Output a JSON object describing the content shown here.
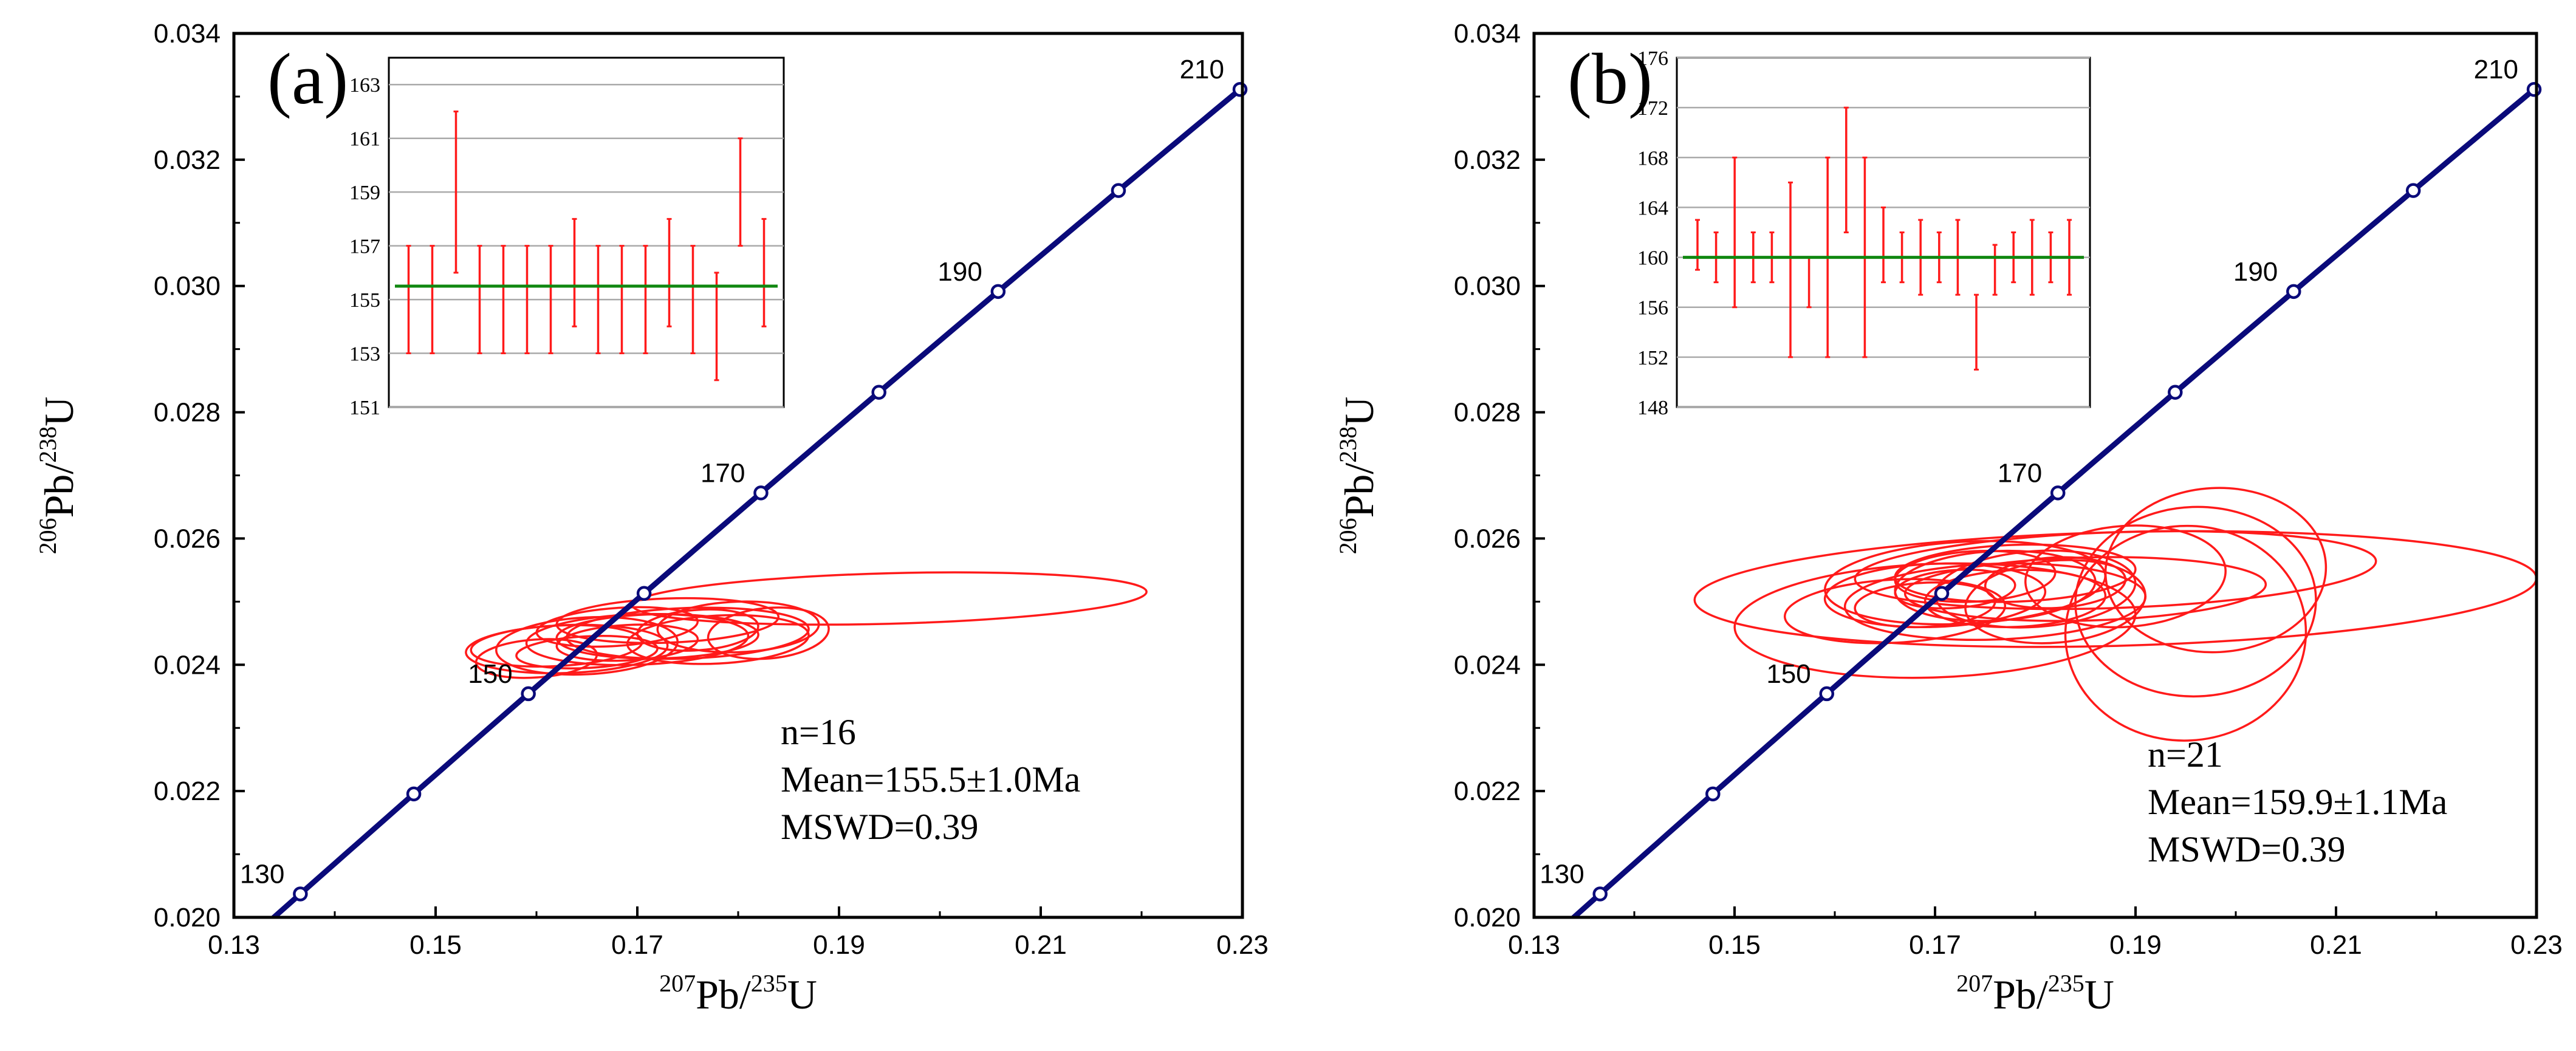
{
  "chart_data": [
    {
      "type": "scatter",
      "panel_label": "(a)",
      "xlabel": {
        "sup": "207",
        "main": "Pb/",
        "sup2": "235",
        "main2": "U"
      },
      "ylabel": {
        "sup": "206",
        "main": "Pb/",
        "sup2": "238",
        "main2": "U"
      },
      "xlim": [
        0.13,
        0.23
      ],
      "ylim": [
        0.02,
        0.034
      ],
      "xticks": [
        "0.13",
        "0.15",
        "0.17",
        "0.19",
        "0.21",
        "0.23"
      ],
      "yticks": [
        "0.020",
        "0.022",
        "0.024",
        "0.026",
        "0.028",
        "0.030",
        "0.032",
        "0.034"
      ],
      "concordia": {
        "ages": [
          130,
          140,
          150,
          160,
          170,
          180,
          190,
          200,
          210
        ],
        "labels": [
          "130",
          "150",
          "170",
          "190",
          "210"
        ]
      },
      "ellipses": [
        {
          "x": 0.163,
          "y": 0.02425,
          "rx": 0.01,
          "ry": 0.00038,
          "rot": 2
        },
        {
          "x": 0.165,
          "y": 0.0243,
          "rx": 0.009,
          "ry": 0.00045,
          "rot": 3
        },
        {
          "x": 0.17,
          "y": 0.0244,
          "rx": 0.011,
          "ry": 0.0004,
          "rot": 2
        },
        {
          "x": 0.172,
          "y": 0.02445,
          "rx": 0.01,
          "ry": 0.00035,
          "rot": 1
        },
        {
          "x": 0.175,
          "y": 0.0245,
          "rx": 0.012,
          "ry": 0.0004,
          "rot": 2
        },
        {
          "x": 0.168,
          "y": 0.0246,
          "rx": 0.008,
          "ry": 0.0003,
          "rot": 4
        },
        {
          "x": 0.178,
          "y": 0.0244,
          "rx": 0.009,
          "ry": 0.00038,
          "rot": 3
        },
        {
          "x": 0.18,
          "y": 0.0246,
          "rx": 0.008,
          "ry": 0.0004,
          "rot": 2
        },
        {
          "x": 0.16,
          "y": 0.0241,
          "rx": 0.006,
          "ry": 0.0003,
          "rot": 4
        },
        {
          "x": 0.165,
          "y": 0.0242,
          "rx": 0.007,
          "ry": 0.00025,
          "rot": 3
        },
        {
          "x": 0.173,
          "y": 0.0247,
          "rx": 0.011,
          "ry": 0.00035,
          "rot": 2
        },
        {
          "x": 0.183,
          "y": 0.0245,
          "rx": 0.006,
          "ry": 0.0004,
          "rot": 5
        },
        {
          "x": 0.169,
          "y": 0.02435,
          "rx": 0.007,
          "ry": 0.00028,
          "rot": 3
        },
        {
          "x": 0.176,
          "y": 0.02455,
          "rx": 0.006,
          "ry": 0.00032,
          "rot": 4
        },
        {
          "x": 0.162,
          "y": 0.0243,
          "rx": 0.0085,
          "ry": 0.00032,
          "rot": 3
        },
        {
          "x": 0.195,
          "y": 0.02505,
          "rx": 0.0255,
          "ry": 0.0004,
          "rot": 1.5
        }
      ],
      "stats": {
        "n": "n=16",
        "mean": "Mean=155.5±1.0Ma",
        "mswd": "MSWD=0.39"
      },
      "inset": {
        "type": "bar",
        "ylim": [
          151,
          164
        ],
        "yticks": [
          "151",
          "153",
          "155",
          "157",
          "159",
          "161",
          "163"
        ],
        "mean": 155.5,
        "errors": [
          {
            "lo": 153,
            "hi": 157
          },
          {
            "lo": 153,
            "hi": 157
          },
          {
            "lo": 156,
            "hi": 162
          },
          {
            "lo": 153,
            "hi": 157
          },
          {
            "lo": 153,
            "hi": 157
          },
          {
            "lo": 153,
            "hi": 157
          },
          {
            "lo": 153,
            "hi": 157
          },
          {
            "lo": 154,
            "hi": 158
          },
          {
            "lo": 153,
            "hi": 157
          },
          {
            "lo": 153,
            "hi": 157
          },
          {
            "lo": 153,
            "hi": 157
          },
          {
            "lo": 154,
            "hi": 158
          },
          {
            "lo": 153,
            "hi": 157
          },
          {
            "lo": 152,
            "hi": 156
          },
          {
            "lo": 157,
            "hi": 161
          },
          {
            "lo": 154,
            "hi": 158
          }
        ]
      }
    },
    {
      "type": "scatter",
      "panel_label": "(b)",
      "xlabel": {
        "sup": "207",
        "main": "Pb/",
        "sup2": "235",
        "main2": "U"
      },
      "ylabel": {
        "sup": "206",
        "main": "Pb/",
        "sup2": "238",
        "main2": "U"
      },
      "xlim": [
        0.13,
        0.23
      ],
      "ylim": [
        0.02,
        0.034
      ],
      "xticks": [
        "0.13",
        "0.15",
        "0.17",
        "0.19",
        "0.21",
        "0.23"
      ],
      "yticks": [
        "0.020",
        "0.022",
        "0.024",
        "0.026",
        "0.028",
        "0.030",
        "0.032",
        "0.034"
      ],
      "concordia": {
        "ages": [
          130,
          140,
          150,
          160,
          170,
          180,
          190,
          200,
          210
        ],
        "labels": [
          "130",
          "150",
          "170",
          "190",
          "210"
        ]
      },
      "ellipses": [
        {
          "x": 0.173,
          "y": 0.0253,
          "rx": 0.014,
          "ry": 0.00065,
          "rot": 3
        },
        {
          "x": 0.17,
          "y": 0.0251,
          "rx": 0.011,
          "ry": 0.0005,
          "rot": 2
        },
        {
          "x": 0.176,
          "y": 0.025,
          "rx": 0.015,
          "ry": 0.0006,
          "rot": 2
        },
        {
          "x": 0.18,
          "y": 0.0252,
          "rx": 0.01,
          "ry": 0.0006,
          "rot": 4
        },
        {
          "x": 0.174,
          "y": 0.0254,
          "rx": 0.008,
          "ry": 0.0004,
          "rot": 3
        },
        {
          "x": 0.169,
          "y": 0.02495,
          "rx": 0.007,
          "ry": 0.00035,
          "rot": 3
        },
        {
          "x": 0.178,
          "y": 0.02505,
          "rx": 0.009,
          "ry": 0.00045,
          "rot": 2
        },
        {
          "x": 0.172,
          "y": 0.0252,
          "rx": 0.006,
          "ry": 0.0003,
          "rot": 4
        },
        {
          "x": 0.166,
          "y": 0.02485,
          "rx": 0.011,
          "ry": 0.0005,
          "rot": 3
        },
        {
          "x": 0.182,
          "y": 0.0253,
          "rx": 0.007,
          "ry": 0.0004,
          "rot": 3
        },
        {
          "x": 0.178,
          "y": 0.02545,
          "rx": 0.012,
          "ry": 0.00045,
          "rot": 2
        },
        {
          "x": 0.17,
          "y": 0.0247,
          "rx": 0.02,
          "ry": 0.0009,
          "rot": 2
        },
        {
          "x": 0.185,
          "y": 0.0252,
          "rx": 0.018,
          "ry": 0.0005,
          "rot": 1.5
        },
        {
          "x": 0.188,
          "y": 0.0255,
          "rx": 0.026,
          "ry": 0.0006,
          "rot": 2
        },
        {
          "x": 0.188,
          "y": 0.0252,
          "rx": 0.042,
          "ry": 0.0009,
          "rot": 1.5
        },
        {
          "x": 0.196,
          "y": 0.025,
          "rx": 0.012,
          "ry": 0.0015,
          "rot": 2
        },
        {
          "x": 0.195,
          "y": 0.0245,
          "rx": 0.012,
          "ry": 0.0017,
          "rot": 3
        },
        {
          "x": 0.198,
          "y": 0.0255,
          "rx": 0.011,
          "ry": 0.0013,
          "rot": 3
        },
        {
          "x": 0.189,
          "y": 0.0254,
          "rx": 0.01,
          "ry": 0.0008,
          "rot": 4
        },
        {
          "x": 0.182,
          "y": 0.025,
          "rx": 0.009,
          "ry": 0.00065,
          "rot": 5
        },
        {
          "x": 0.176,
          "y": 0.02525,
          "rx": 0.01,
          "ry": 0.00055,
          "rot": 3
        }
      ],
      "stats": {
        "n": "n=21",
        "mean": "Mean=159.9±1.1Ma",
        "mswd": "MSWD=0.39"
      },
      "inset": {
        "type": "bar",
        "ylim": [
          148,
          176
        ],
        "yticks": [
          "148",
          "152",
          "156",
          "160",
          "164",
          "168",
          "172",
          "176"
        ],
        "mean": 160,
        "errors": [
          {
            "lo": 159,
            "hi": 163
          },
          {
            "lo": 158,
            "hi": 162
          },
          {
            "lo": 156,
            "hi": 168
          },
          {
            "lo": 158,
            "hi": 162
          },
          {
            "lo": 158,
            "hi": 162
          },
          {
            "lo": 152,
            "hi": 166
          },
          {
            "lo": 156,
            "hi": 160
          },
          {
            "lo": 152,
            "hi": 168
          },
          {
            "lo": 162,
            "hi": 172
          },
          {
            "lo": 152,
            "hi": 168
          },
          {
            "lo": 158,
            "hi": 164
          },
          {
            "lo": 158,
            "hi": 162
          },
          {
            "lo": 157,
            "hi": 163
          },
          {
            "lo": 158,
            "hi": 162
          },
          {
            "lo": 157,
            "hi": 163
          },
          {
            "lo": 151,
            "hi": 157
          },
          {
            "lo": 157,
            "hi": 161
          },
          {
            "lo": 158,
            "hi": 162
          },
          {
            "lo": 157,
            "hi": 163
          },
          {
            "lo": 158,
            "hi": 162
          },
          {
            "lo": 157,
            "hi": 163
          }
        ]
      }
    }
  ],
  "colors": {
    "concordia": "#0a0a7a",
    "ellipse": "#ff1a1a",
    "mean_line": "#118811",
    "axis": "#000000",
    "grid": "#aaaaaa"
  }
}
